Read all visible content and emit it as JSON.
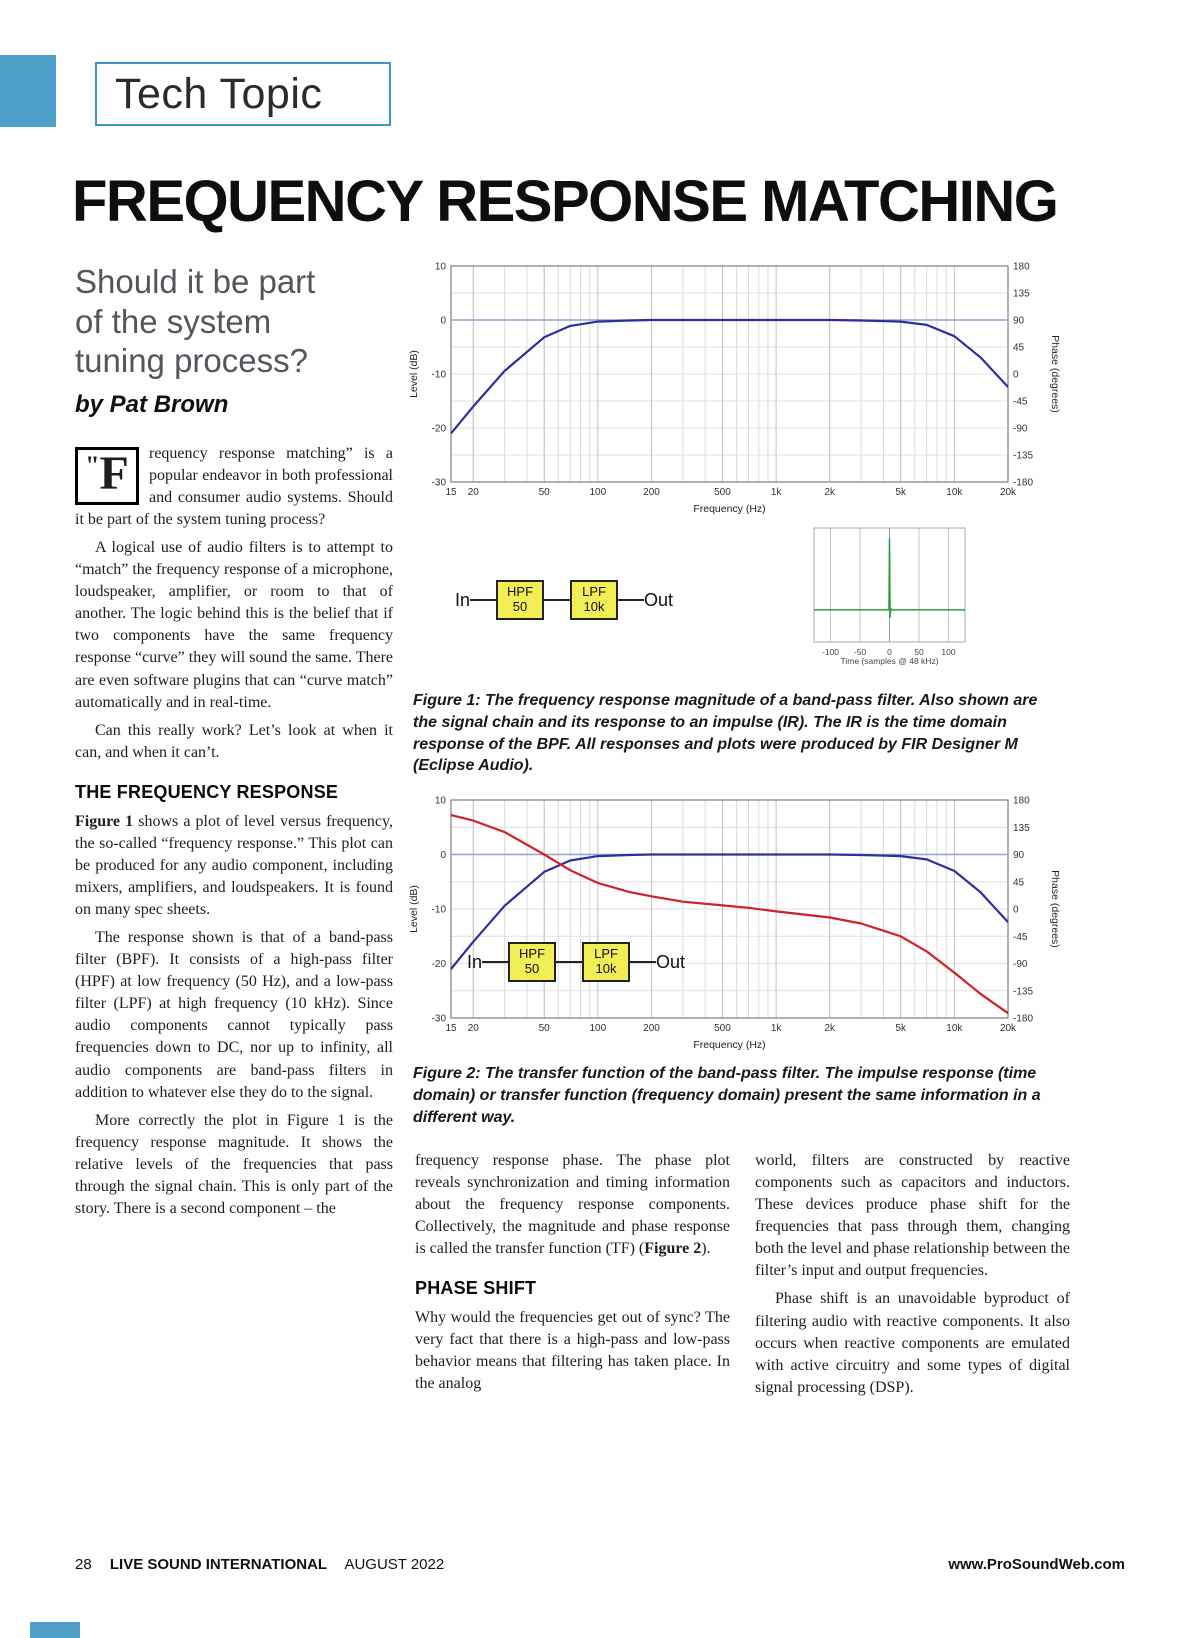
{
  "page": {
    "tag": "Tech Topic",
    "title": "FREQUENCY RESPONSE MATCHING",
    "subtitle": "Should it be part\nof the system\ntuning process?",
    "byline": "by Pat Brown",
    "footer_page": "28",
    "footer_brand": "LIVE SOUND INTERNATIONAL",
    "footer_date": "AUGUST 2022",
    "footer_url": "www.ProSoundWeb.com"
  },
  "article": {
    "dropcap_quote": "\"",
    "dropcap_letter": "F",
    "p1": "requency response matching” is a popular endeavor in both professional and consumer audio systems. Should it be part of the system tuning process?",
    "p2": "A logical use of audio filters is to attempt to “match” the frequency response of a microphone, loudspeaker, amplifier, or room to that of another. The logic behind this is the belief that if two components have the same frequency response “curve” they will sound the same. There are even software plugins that can “curve match” automatically and in real-time.",
    "p3": "Can this really work? Let’s look at when it can, and when it can’t.",
    "h_freq": "THE FREQUENCY RESPONSE",
    "p4_bold": "Figure 1",
    "p4_text": " shows a plot of level versus frequency, the so-called “frequency response.” This plot can be produced for any audio component, including mixers, amplifiers, and loudspeakers. It is found on many spec sheets.",
    "p5": "The response shown is that of a band-pass filter (BPF). It consists of a high-pass filter (HPF) at low frequency (50 Hz), and a low-pass filter (LPF) at high frequency (10 kHz). Since audio components cannot typically pass frequencies down to DC, nor up to infinity, all audio components are band-pass filters in addition to whatever else they do to the signal.",
    "p6": "More correctly the plot in Figure 1 is the frequency response magnitude. It shows the relative levels of the frequencies that pass through the signal chain. This is only part of the story. There is a second component – the",
    "p7_text1": "frequency response phase. The phase plot reveals synchronization and timing information about the frequency response components. Collectively, the magnitude and phase response is called the transfer function (TF) (",
    "p7_bold": "Figure 2",
    "p7_text2": ").",
    "h_phase": "PHASE SHIFT",
    "p8": "Why would the frequencies get out of sync? The very fact that there is a high-pass and low-pass behavior means that filtering has taken place. In the analog",
    "p9": "world, filters are constructed by reactive components such as capacitors and inductors. These devices produce phase shift for the frequencies that pass through them, changing both the level and phase relationship between the filter’s input and output frequencies.",
    "p10": "Phase shift is an unavoidable byproduct of filtering audio with reactive components. It also occurs when reactive components are emulated with active circuitry and some types of digital signal processing (DSP)."
  },
  "figures": {
    "fig1_caption": "Figure 1: The frequency response magnitude of a band-pass filter. Also shown are the signal chain and its response to an impulse (IR). The IR is the time domain response of the BPF. All responses and plots were produced by FIR Designer M (Eclipse Audio).",
    "fig2_caption": "Figure 2: The transfer function of the band-pass filter. The impulse response (time domain) or transfer function (frequency domain) present the same information in a different way."
  },
  "signal_chain": {
    "in_label": "In",
    "out_label": "Out",
    "blocks": [
      {
        "line1": "HPF",
        "line2": "50"
      },
      {
        "line1": "LPF",
        "line2": "10k"
      }
    ]
  },
  "chart_data": [
    {
      "id": "fig1",
      "type": "line",
      "title": "Band-pass filter frequency response magnitude",
      "x_scale": "log",
      "xlabel": "Frequency (Hz)",
      "ylabel": "Level (dB)",
      "y2label": "Phase (degrees)",
      "xlim": [
        15,
        20000
      ],
      "ylim_left": [
        -30,
        10
      ],
      "ylim_right": [
        -180,
        180
      ],
      "x_ticks": [
        "15",
        "20",
        "50",
        "100",
        "200",
        "500",
        "1k",
        "2k",
        "5k",
        "10k",
        "20k"
      ],
      "x_tick_values": [
        15,
        20,
        50,
        100,
        200,
        500,
        1000,
        2000,
        5000,
        10000,
        20000
      ],
      "y_ticks_left": [
        10,
        0,
        -10,
        -20,
        -30
      ],
      "y_ticks_right": [
        180,
        135,
        90,
        45,
        0,
        -45,
        -90,
        -135,
        -180
      ],
      "y_grid": [
        5,
        0,
        -5,
        -10,
        -15,
        -20,
        -25
      ],
      "series": [
        {
          "name": "zero-dB-reference",
          "axis": "left",
          "color": "#979FD4",
          "width": 1.6,
          "x": [
            15,
            20000
          ],
          "y": [
            0,
            0
          ]
        },
        {
          "name": "magnitude",
          "axis": "left",
          "color": "#2D2F9E",
          "width": 2.2,
          "x": [
            15,
            20,
            30,
            50,
            70,
            100,
            150,
            200,
            300,
            500,
            700,
            1000,
            2000,
            3000,
            5000,
            7000,
            10000,
            14000,
            20000
          ],
          "y": [
            -21,
            -16,
            -9.4,
            -3.2,
            -1.1,
            -0.3,
            -0.1,
            0,
            0,
            0,
            0,
            0,
            0,
            -0.1,
            -0.3,
            -0.9,
            -3,
            -6.9,
            -12.4
          ]
        }
      ]
    },
    {
      "id": "ir",
      "type": "line",
      "title": "Impulse response of the band-pass filter",
      "x_scale": "linear",
      "xlabel": "Time (samples @ 48 kHz)",
      "xlim": [
        -128,
        128
      ],
      "ylim_left": [
        -0.45,
        1.15
      ],
      "x_ticks": [
        "-100",
        "-50",
        "0",
        "50",
        "100"
      ],
      "x_tick_values": [
        -100,
        -50,
        0,
        50,
        100
      ],
      "y_ticks_left": [],
      "y_grid": [],
      "v_marks": [
        0
      ],
      "series": [
        {
          "name": "impulse",
          "axis": "left",
          "color": "#2F9E38",
          "width": 1.5,
          "x": [
            -128,
            -3,
            -1,
            0,
            1,
            2,
            4,
            128
          ],
          "y": [
            0,
            0,
            0,
            1,
            -0.1,
            0.02,
            0,
            0
          ]
        }
      ]
    },
    {
      "id": "fig2",
      "type": "line",
      "title": "Band-pass filter transfer function (magnitude and phase)",
      "x_scale": "log",
      "xlabel": "Frequency (Hz)",
      "ylabel": "Level (dB)",
      "y2label": "Phase (degrees)",
      "xlim": [
        15,
        20000
      ],
      "ylim_left": [
        -30,
        10
      ],
      "ylim_right": [
        -180,
        180
      ],
      "x_ticks": [
        "15",
        "20",
        "50",
        "100",
        "200",
        "500",
        "1k",
        "2k",
        "5k",
        "10k",
        "20k"
      ],
      "x_tick_values": [
        15,
        20,
        50,
        100,
        200,
        500,
        1000,
        2000,
        5000,
        10000,
        20000
      ],
      "y_ticks_left": [
        10,
        0,
        -10,
        -20,
        -30
      ],
      "y_ticks_right": [
        180,
        135,
        90,
        45,
        0,
        -45,
        -90,
        -135,
        -180
      ],
      "y_grid": [
        5,
        0,
        -5,
        -10,
        -15,
        -20,
        -25
      ],
      "series": [
        {
          "name": "zero-dB-reference",
          "axis": "left",
          "color": "#979FD4",
          "width": 1.6,
          "x": [
            15,
            20000
          ],
          "y": [
            0,
            0
          ]
        },
        {
          "name": "magnitude",
          "axis": "left",
          "color": "#2D2F9E",
          "width": 2.2,
          "x": [
            15,
            20,
            30,
            50,
            70,
            100,
            150,
            200,
            300,
            500,
            700,
            1000,
            2000,
            3000,
            5000,
            7000,
            10000,
            14000,
            20000
          ],
          "y": [
            -21,
            -16,
            -9.4,
            -3.2,
            -1.1,
            -0.3,
            -0.1,
            0,
            0,
            0,
            0,
            0,
            0,
            -0.1,
            -0.3,
            -0.9,
            -3,
            -6.9,
            -12.4
          ]
        },
        {
          "name": "phase",
          "axis": "right",
          "color": "#CF2127",
          "width": 2.2,
          "x": [
            15,
            20,
            30,
            50,
            70,
            100,
            150,
            200,
            300,
            500,
            700,
            1000,
            2000,
            3000,
            5000,
            7000,
            10000,
            14000,
            20000
          ],
          "y": [
            155,
            146,
            127,
            90,
            64,
            43,
            28,
            21,
            12,
            6,
            2,
            -4,
            -14,
            -24,
            -45,
            -70,
            -105,
            -140,
            -172
          ]
        }
      ]
    }
  ]
}
